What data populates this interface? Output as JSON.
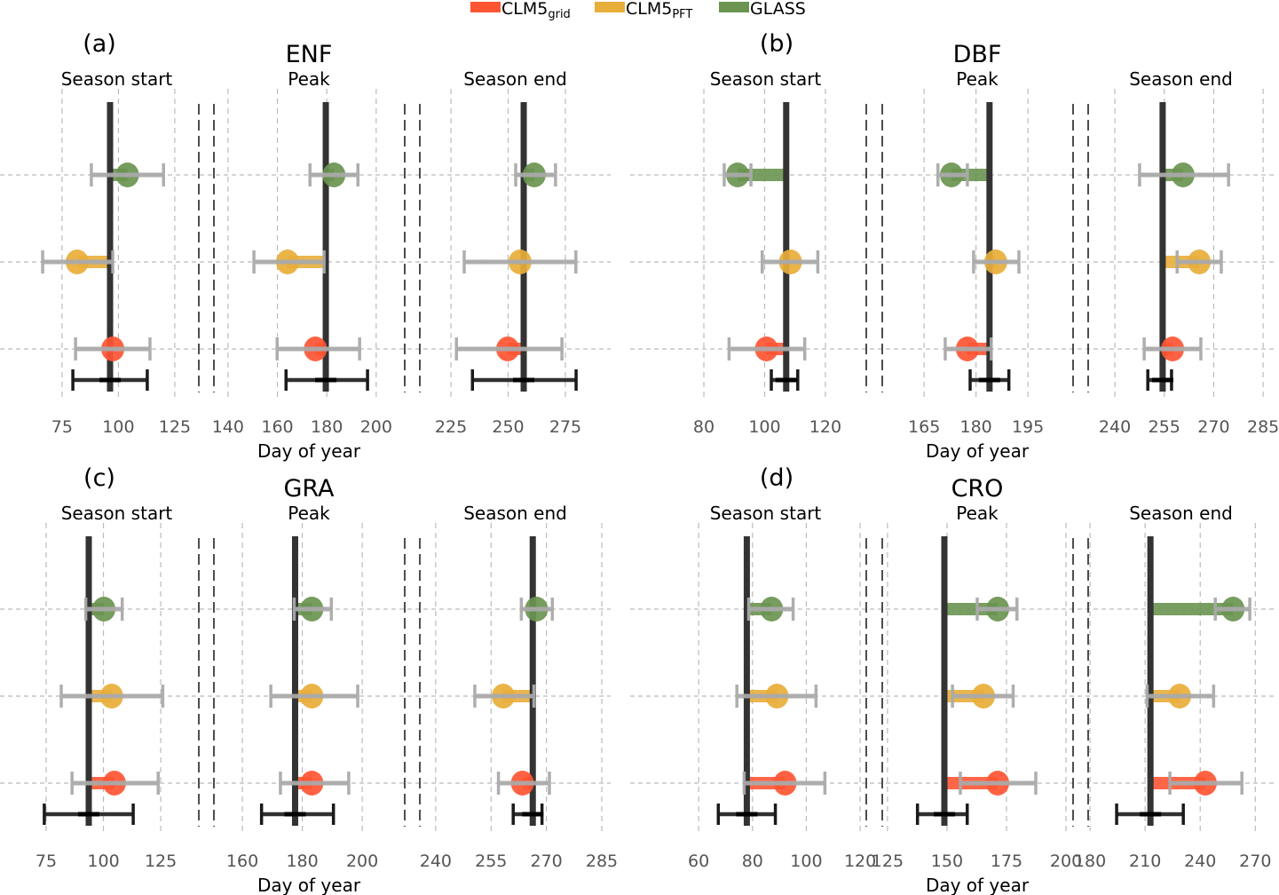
{
  "legend": [
    {
      "label": "CLM5",
      "sub": "grid",
      "color": "#FF5533"
    },
    {
      "label": "CLM5",
      "sub": "PFT",
      "color": "#E8AE3A"
    },
    {
      "label": "GLASS",
      "sub": "",
      "color": "#6A9450"
    }
  ],
  "colors": {
    "reference": "#333333",
    "errorbar": "#AAAAAA",
    "reference_err": "#1a1a1a"
  },
  "chart_data": {
    "type": "scatter",
    "xlabel": "Day of year",
    "row_order": [
      "GLASS",
      "CLM5_PFT",
      "CLM5_grid"
    ],
    "panels": [
      {
        "label": "(a)",
        "title": "ENF",
        "subplots": [
          {
            "title": "Season start",
            "xlim": [
              65.2,
              133.3
            ],
            "ticks": [
              75,
              100,
              125
            ],
            "reference": {
              "value": 96.3,
              "err": [
                79.8,
                112.8
              ]
            },
            "points": {
              "GLASS": {
                "value": 104,
                "err": [
                  88,
                  120
                ]
              },
              "CLM5_PFT": {
                "value": 81.7,
                "err": [
                  66.4,
                  97.5
                ]
              },
              "CLM5_grid": {
                "value": 97.5,
                "err": [
                  81,
                  114
                ]
              }
            }
          },
          {
            "title": "Peak",
            "xlim": [
              134.3,
              211.2
            ],
            "ticks": [
              140,
              160,
              180,
              200
            ],
            "reference": {
              "value": 179.6,
              "err": [
                163.5,
                196.5
              ]
            },
            "points": {
              "GLASS": {
                "value": 182.9,
                "err": [
                  173.2,
                  192.6
                ]
              },
              "CLM5_PFT": {
                "value": 164.1,
                "err": [
                  150.5,
                  178.9
                ]
              },
              "CLM5_grid": {
                "value": 175.4,
                "err": [
                  159.9,
                  193.3
                ]
              }
            }
          },
          {
            "title": "Season end",
            "xlim": [
              211.4,
              294.8
            ],
            "ticks": [
              225,
              250,
              275
            ],
            "reference": {
              "value": 256.8,
              "err": [
                234.4,
                279.7
              ]
            },
            "points": {
              "GLASS": {
                "value": 261.4,
                "err": [
                  253.3,
                  270.7
                ]
              },
              "CLM5_PFT": {
                "value": 255.2,
                "err": [
                  230.8,
                  279.6
                ]
              },
              "CLM5_grid": {
                "value": 249.8,
                "err": [
                  227.4,
                  273.5
                ]
              }
            }
          }
        ]
      },
      {
        "label": "(b)",
        "title": "DBF",
        "subplots": [
          {
            "title": "Season start",
            "xlim": [
              68.9,
              131.7
            ],
            "ticks": [
              80,
              100,
              120
            ],
            "reference": {
              "value": 107.1,
              "err": [
                102.2,
                110.9
              ]
            },
            "points": {
              "GLASS": {
                "value": 91.1,
                "err": [
                  86.7,
                  95.5
                ]
              },
              "CLM5_PFT": {
                "value": 108.5,
                "err": [
                  99.2,
                  117.5
                ]
              },
              "CLM5_grid": {
                "value": 100.6,
                "err": [
                  88.3,
                  113.2
                ]
              }
            }
          },
          {
            "title": "Peak",
            "xlim": [
              152.9,
              207.8
            ],
            "ticks": [
              165,
              180,
              195
            ],
            "reference": {
              "value": 183.9,
              "err": [
                178.3,
                189.5
              ]
            },
            "points": {
              "GLASS": {
                "value": 172.9,
                "err": [
                  169,
                  177.5
                ]
              },
              "CLM5_PFT": {
                "value": 185.7,
                "err": [
                  179.3,
                  192.4
                ]
              },
              "CLM5_grid": {
                "value": 177.5,
                "err": [
                  171.1,
                  184.4
                ]
              }
            }
          },
          {
            "title": "Season end",
            "xlim": [
              231.9,
              288.2
            ],
            "ticks": [
              240,
              255,
              270,
              285
            ],
            "reference": {
              "value": 254.5,
              "err": [
                250,
                257.2
              ]
            },
            "points": {
              "GLASS": {
                "value": 260.7,
                "err": [
                  247.5,
                  274.5
                ]
              },
              "CLM5_PFT": {
                "value": 265.6,
                "err": [
                  258.9,
                  272.3
                ]
              },
              "CLM5_grid": {
                "value": 257.5,
                "err": [
                  248.9,
                  266.1
                ]
              }
            }
          }
        ]
      },
      {
        "label": "(c)",
        "title": "GRA",
        "subplots": [
          {
            "title": "Season start",
            "xlim": [
              72.3,
              139.3
            ],
            "ticks": [
              75,
              100,
              125
            ],
            "reference": {
              "value": 93.6,
              "err": [
                74.2,
                113
              ]
            },
            "points": {
              "GLASS": {
                "value": 100.2,
                "err": [
                  92.3,
                  108.2
                ]
              },
              "CLM5_PFT": {
                "value": 103.6,
                "err": [
                  81.6,
                  125.9
                ]
              },
              "CLM5_grid": {
                "value": 104.8,
                "err": [
                  86.3,
                  123.9
                ]
              }
            }
          },
          {
            "title": "Peak",
            "xlim": [
              150.5,
              213.9
            ],
            "ticks": [
              160,
              180,
              200
            ],
            "reference": {
              "value": 177.6,
              "err": [
                166.4,
                190.4
              ]
            },
            "points": {
              "GLASS": {
                "value": 183.2,
                "err": [
                  177.3,
                  189.7
                ]
              },
              "CLM5_PFT": {
                "value": 183.2,
                "err": [
                  169.5,
                  198.5
                ]
              },
              "CLM5_grid": {
                "value": 183.2,
                "err": [
                  172.7,
                  195.5
                ]
              }
            }
          },
          {
            "title": "Season end",
            "xlim": [
              235.7,
              287.4
            ],
            "ticks": [
              240,
              255,
              270,
              285
            ],
            "reference": {
              "value": 266.3,
              "err": [
                261,
                268.8
              ]
            },
            "points": {
              "GLASS": {
                "value": 267.3,
                "err": [
                  263.2,
                  271.6
                ]
              },
              "CLM5_PFT": {
                "value": 258.3,
                "err": [
                  250.6,
                  266.6
                ]
              },
              "CLM5_grid": {
                "value": 263.5,
                "err": [
                  257,
                  270.8
                ]
              }
            }
          }
        ]
      },
      {
        "label": "(d)",
        "title": "CRO",
        "subplots": [
          {
            "title": "Season start",
            "xlim": [
              49.4,
              120.3
            ],
            "ticks": [
              60,
              80,
              100,
              120
            ],
            "reference": {
              "value": 77.9,
              "err": [
                67.3,
                88.5
              ]
            },
            "points": {
              "GLASS": {
                "value": 87.1,
                "err": [
                  78.6,
                  95.1
                ]
              },
              "CLM5_PFT": {
                "value": 89.1,
                "err": [
                  74.2,
                  103.6
                ]
              },
              "CLM5_grid": {
                "value": 92.1,
                "err": [
                  76.9,
                  106.9
                ]
              }
            }
          },
          {
            "title": "Peak",
            "xlim": [
              122.8,
              202.6
            ],
            "ticks": [
              125,
              150,
              175,
              200
            ],
            "reference": {
              "value": 148.9,
              "err": [
                137.6,
                158.5
              ]
            },
            "points": {
              "GLASS": {
                "value": 171.3,
                "err": [
                  162.7,
                  179.4
                ]
              },
              "CLM5_PFT": {
                "value": 165.3,
                "err": [
                  152.3,
                  177.8
                ]
              },
              "CLM5_grid": {
                "value": 171.3,
                "err": [
                  155.6,
                  187.3
                ]
              }
            }
          },
          {
            "title": "Season end",
            "xlim": [
              179,
              280
            ],
            "ticks": [
              180,
              210,
              240,
              270
            ],
            "reference": {
              "value": 212.9,
              "err": [
                194.5,
                230.8
              ]
            },
            "points": {
              "GLASS": {
                "value": 257.9,
                "err": [
                  248.2,
                  267
                ]
              },
              "CLM5_PFT": {
                "value": 228.8,
                "err": [
                  211.1,
                  247.3
                ]
              },
              "CLM5_grid": {
                "value": 242.8,
                "err": [
                  223.5,
                  262.7
                ]
              }
            }
          }
        ]
      }
    ]
  }
}
